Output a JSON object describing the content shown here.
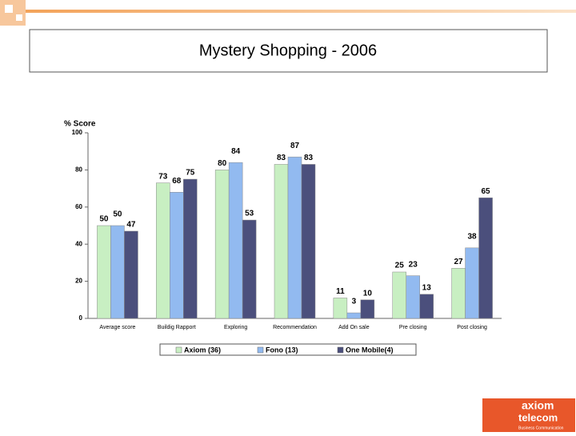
{
  "chart_data": {
    "type": "bar",
    "title": "Mystery Shopping - 2006",
    "y_label": "% Score",
    "categories": [
      "Average score",
      "Buildig Rapport",
      "Exploring",
      "Recommendation",
      "Add On sale",
      "Pre closing",
      "Post closing"
    ],
    "series": [
      {
        "name": "Axiom (36)",
        "color": "#c8efc2",
        "values": [
          50,
          73,
          80,
          83,
          11,
          25,
          27
        ]
      },
      {
        "name": "Fono (13)",
        "color": "#92baf0",
        "values": [
          50,
          68,
          84,
          87,
          3,
          23,
          38
        ]
      },
      {
        "name": "One Mobile(4)",
        "color": "#4b4f7c",
        "values": [
          47,
          75,
          53,
          83,
          10,
          13,
          65
        ]
      }
    ],
    "ylim": [
      0,
      100
    ],
    "yticks": [
      0,
      20,
      40,
      60,
      80,
      100
    ],
    "grid": false,
    "legend": "bottom"
  },
  "logo": {
    "name": "axiom",
    "subname": "telecom",
    "tagline": "Business Communication"
  }
}
